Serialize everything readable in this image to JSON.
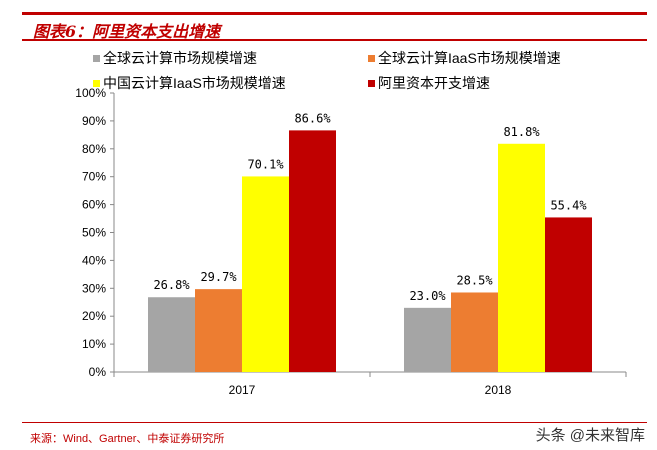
{
  "header": {
    "title": "图表6：阿里资本支出增速"
  },
  "footer": {
    "source": "来源：Wind、Gartner、中泰证券研究所",
    "watermark": "头条 @未来智库"
  },
  "chart_data": {
    "type": "bar",
    "title": "",
    "xlabel": "",
    "ylabel": "",
    "categories": [
      "2017",
      "2018"
    ],
    "ylim": [
      0,
      100
    ],
    "yticks": [
      "0%",
      "10%",
      "20%",
      "30%",
      "40%",
      "50%",
      "60%",
      "70%",
      "80%",
      "90%",
      "100%"
    ],
    "grid": false,
    "legend_position": "top",
    "series": [
      {
        "name": "全球云计算市场规模增速",
        "color": "#a5a5a5",
        "values": [
          26.8,
          23.0
        ],
        "labels": [
          "26.8%",
          "23.0%"
        ]
      },
      {
        "name": "全球云计算IaaS市场规模增速",
        "color": "#ed7d31",
        "values": [
          29.7,
          28.5
        ],
        "labels": [
          "29.7%",
          "28.5%"
        ]
      },
      {
        "name": "中国云计算IaaS市场规模增速",
        "color": "#ffff00",
        "values": [
          70.1,
          81.8
        ],
        "labels": [
          "70.1%",
          "81.8%"
        ]
      },
      {
        "name": "阿里资本开支增速",
        "color": "#c00000",
        "values": [
          86.6,
          55.4
        ],
        "labels": [
          "86.6%",
          "55.4%"
        ]
      }
    ]
  }
}
